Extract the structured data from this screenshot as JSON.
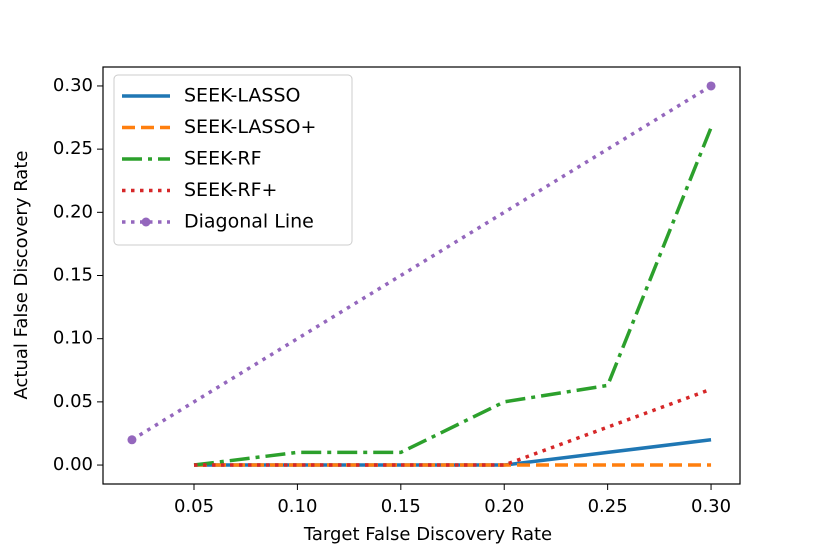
{
  "chart_data": {
    "type": "line",
    "xlabel": "Target False Discovery Rate",
    "ylabel": "Actual False Discovery Rate",
    "xlim": [
      0.006,
      0.314
    ],
    "ylim": [
      -0.015,
      0.315
    ],
    "xticks": [
      0.05,
      {
        "value": 0.1,
        "label": "0.10"
      },
      0.15,
      {
        "value": 0.2,
        "label": "0.20"
      },
      0.25,
      {
        "value": 0.3,
        "label": "0.30"
      }
    ],
    "yticks": [
      {
        "value": 0,
        "label": "0.00"
      },
      0.05,
      {
        "value": 0.1,
        "label": "0.10"
      },
      0.15,
      {
        "value": 0.2,
        "label": "0.20"
      },
      0.25,
      {
        "value": 0.3,
        "label": "0.30"
      }
    ],
    "legend": "upper left",
    "series": [
      {
        "name": "SEEK-LASSO",
        "color": "#1f77b4",
        "linestyle": "solid",
        "x": [
          0.05,
          0.1,
          0.15,
          0.2,
          0.25,
          0.3
        ],
        "values": [
          0,
          0,
          0,
          0,
          0.01,
          0.02
        ]
      },
      {
        "name": "SEEK-LASSO+",
        "color": "#ff7f0e",
        "linestyle": "dashed",
        "x": [
          0.05,
          0.1,
          0.15,
          0.2,
          0.25,
          0.3
        ],
        "values": [
          0,
          0,
          0,
          0,
          0,
          0
        ]
      },
      {
        "name": "SEEK-RF",
        "color": "#2ca02c",
        "linestyle": "dashdot",
        "x": [
          0.05,
          0.1,
          0.15,
          0.2,
          0.25,
          0.3
        ],
        "values": [
          0,
          0.01,
          0.01,
          0.05,
          0.063,
          0.267
        ]
      },
      {
        "name": "SEEK-RF+",
        "color": "#d62728",
        "linestyle": "dotted",
        "x": [
          0.05,
          0.1,
          0.15,
          0.2,
          0.25,
          0.3
        ],
        "values": [
          0,
          0,
          0,
          0,
          0.03,
          0.06
        ]
      },
      {
        "name": "Diagonal Line",
        "color": "#9467bd",
        "linestyle": "dotted",
        "marker": "o",
        "x": [
          0.02,
          0.3
        ],
        "values": [
          0.02,
          0.3
        ]
      }
    ]
  }
}
